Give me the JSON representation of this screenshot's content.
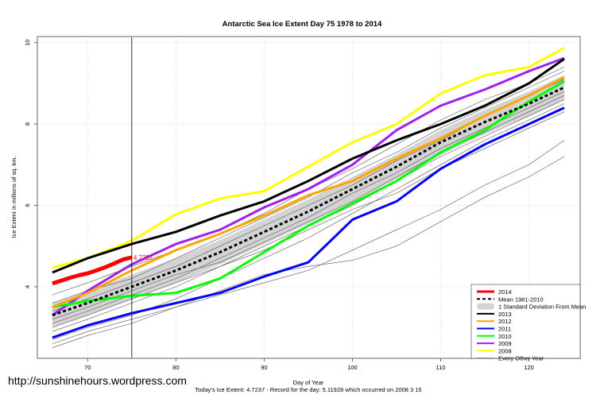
{
  "chart_data": {
    "type": "line",
    "title": "Antarctic Sea Ice Extent Day 75 1978 to 2014",
    "xlabel": "Day of Year",
    "ylabel": "Ice Extent in millions of sq. km.",
    "subtitle": "Today's Ice Extent: 4.7237  - Record for the day: 5.11928 which occurred on 2008 3 15",
    "watermark": "http://sunshinehours.wordpress.com",
    "xlim": [
      64.3,
      125.8
    ],
    "ylim": [
      2.24,
      10.15
    ],
    "xticks": [
      70,
      80,
      90,
      100,
      110,
      120
    ],
    "yticks": [
      4,
      6,
      8,
      10
    ],
    "grid": true,
    "legend_position": "bottom-right",
    "marker_day": 75,
    "annotation": {
      "text": "4.7237",
      "x": 75,
      "y": 4.72,
      "color": "#ff0000"
    },
    "x": [
      66,
      70,
      75,
      80,
      85,
      90,
      95,
      100,
      105,
      110,
      115,
      120,
      124
    ],
    "sd_band": {
      "name": "1 Standard Deviation From Mean",
      "half_width": 0.3,
      "color": "#d3d3d3"
    },
    "series": [
      {
        "name": "2014",
        "color": "#ff0000",
        "width": 5,
        "x": [
          66,
          67,
          68,
          69,
          70,
          71,
          72,
          73,
          74,
          75
        ],
        "values": [
          4.08,
          4.15,
          4.22,
          4.28,
          4.33,
          4.4,
          4.48,
          4.57,
          4.67,
          4.72
        ]
      },
      {
        "name": "Mean 1981-2010",
        "color": "#000000",
        "width": 3,
        "dashed": true,
        "values": [
          3.3,
          3.6,
          4.0,
          4.4,
          4.85,
          5.35,
          5.85,
          6.4,
          6.95,
          7.55,
          8.05,
          8.5,
          8.9
        ]
      },
      {
        "name": "2013",
        "color": "#000000",
        "width": 3,
        "values": [
          4.35,
          4.7,
          5.05,
          5.35,
          5.75,
          6.1,
          6.6,
          7.15,
          7.6,
          8.0,
          8.45,
          9.0,
          9.6
        ]
      },
      {
        "name": "2012",
        "color": "#ffa500",
        "width": 3,
        "values": [
          3.5,
          3.85,
          4.4,
          4.9,
          5.3,
          5.75,
          6.25,
          6.6,
          7.15,
          7.65,
          8.2,
          8.7,
          9.15
        ]
      },
      {
        "name": "2011",
        "color": "#0000ff",
        "width": 3,
        "values": [
          2.75,
          3.05,
          3.35,
          3.6,
          3.85,
          4.25,
          4.6,
          5.65,
          6.1,
          6.9,
          7.5,
          8.0,
          8.4
        ]
      },
      {
        "name": "2010",
        "color": "#00ff00",
        "width": 3,
        "values": [
          3.5,
          3.65,
          3.78,
          3.85,
          4.2,
          4.85,
          5.5,
          6.05,
          6.6,
          7.3,
          7.85,
          8.55,
          9.05
        ]
      },
      {
        "name": "2009",
        "color": "#a020f0",
        "width": 3,
        "values": [
          3.3,
          3.9,
          4.55,
          5.05,
          5.4,
          5.95,
          6.4,
          7.0,
          7.85,
          8.45,
          8.85,
          9.3,
          9.62
        ]
      },
      {
        "name": "2008",
        "color": "#ffff00",
        "width": 3,
        "values": [
          4.47,
          4.7,
          5.13,
          5.78,
          6.17,
          6.35,
          6.95,
          7.55,
          8.0,
          8.75,
          9.2,
          9.4,
          9.87
        ]
      }
    ],
    "other_years": {
      "name": "Every Other Year",
      "color": "#555555",
      "values": [
        [
          2.5,
          2.8,
          3.1,
          3.5,
          3.9,
          4.3,
          4.5,
          4.65,
          5.0,
          5.6,
          6.2,
          6.7,
          7.2
        ],
        [
          2.9,
          3.2,
          3.6,
          4.0,
          4.5,
          5.0,
          5.5,
          6.0,
          6.6,
          7.2,
          7.7,
          8.2,
          8.6
        ],
        [
          3.1,
          3.4,
          3.8,
          4.2,
          4.7,
          5.2,
          5.7,
          6.3,
          6.8,
          7.4,
          7.9,
          8.4,
          8.8
        ],
        [
          3.4,
          3.7,
          4.1,
          4.5,
          5.0,
          5.5,
          6.0,
          6.5,
          7.1,
          7.6,
          8.2,
          8.7,
          9.1
        ],
        [
          3.6,
          3.9,
          4.2,
          4.7,
          5.2,
          5.7,
          6.2,
          6.8,
          7.3,
          7.9,
          8.4,
          8.9,
          9.3
        ],
        [
          3.8,
          4.1,
          4.5,
          4.9,
          5.3,
          5.8,
          6.4,
          6.9,
          7.5,
          8.1,
          8.6,
          9.0,
          9.4
        ],
        [
          3.2,
          3.5,
          3.9,
          4.3,
          4.6,
          5.1,
          5.6,
          6.1,
          6.7,
          7.3,
          7.8,
          8.3,
          8.7
        ],
        [
          2.7,
          3.0,
          3.3,
          3.7,
          4.2,
          4.7,
          5.2,
          5.8,
          6.4,
          7.0,
          7.6,
          8.1,
          8.5
        ],
        [
          3.0,
          3.3,
          3.7,
          4.1,
          4.5,
          4.9,
          5.4,
          5.9,
          6.3,
          6.9,
          7.4,
          7.9,
          8.3
        ],
        [
          2.6,
          2.9,
          3.2,
          3.5,
          3.8,
          4.1,
          4.4,
          4.9,
          5.4,
          5.9,
          6.5,
          7.0,
          7.6
        ]
      ]
    }
  }
}
